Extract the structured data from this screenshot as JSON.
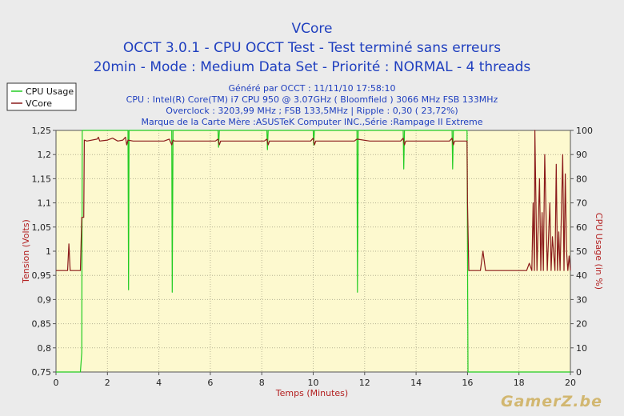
{
  "header": {
    "title": "VCore",
    "line2": "OCCT 3.0.1 - CPU OCCT Test - Test terminé sans erreurs",
    "line3": "20min - Mode : Medium Data Set - Priorité : NORMAL - 4 threads"
  },
  "info": [
    "Généré par OCCT : 11/11/10 17:58:10",
    "CPU : Intel(R) Core(TM) i7 CPU 950 @ 3.07GHz ( Bloomfield ) 3066 MHz FSB 133MHz",
    "Overclock : 3203,99 MHz ; FSB 133,5MHz | Ripple : 0,30 ( 23,72%)",
    "Marque de la Carte Mère :ASUSTeK Computer INC.,Série :Rampage II Extreme"
  ],
  "watermark": "GamerZ.be",
  "colors": {
    "cpu": "#22cc22",
    "vcore": "#8b1a1a",
    "plot_bg": "#fdf9cf",
    "grid": "#b8b394"
  },
  "chart_data": {
    "type": "line",
    "xlabel": "Temps (Minutes)",
    "ylabel": "Tension (Volts)",
    "y2label": "CPU Usage (in %)",
    "xlim": [
      0,
      20
    ],
    "ylim": [
      0.75,
      1.25
    ],
    "y2lim": [
      0,
      100
    ],
    "x_ticks": [
      0,
      2,
      4,
      6,
      8,
      10,
      12,
      14,
      16,
      18,
      20
    ],
    "y_ticks": [
      "0,75",
      "0,8",
      "0,85",
      "0,9",
      "0,95",
      "1",
      "1,05",
      "1,1",
      "1,15",
      "1,2",
      "1,25"
    ],
    "y2_ticks": [
      0,
      10,
      20,
      30,
      40,
      50,
      60,
      70,
      80,
      90,
      100
    ],
    "legend": [
      "CPU Usage",
      "VCore"
    ],
    "series": [
      {
        "name": "CPU Usage",
        "axis": "right",
        "x": [
          0,
          0.95,
          1.0,
          1.02,
          1.05,
          1.1,
          2.8,
          2.82,
          2.84,
          2.9,
          4.5,
          4.52,
          4.55,
          4.6,
          6.3,
          6.32,
          6.35,
          6.4,
          8.2,
          8.22,
          8.25,
          8.3,
          10.0,
          10.02,
          10.05,
          10.1,
          11.7,
          11.72,
          11.75,
          11.8,
          13.5,
          13.52,
          13.55,
          13.6,
          15.4,
          15.42,
          15.45,
          15.5,
          15.98,
          16.02,
          16.05,
          16.1,
          20
        ],
        "y": [
          0,
          0,
          8,
          100,
          100,
          100,
          100,
          34,
          100,
          100,
          100,
          33,
          100,
          100,
          100,
          93,
          100,
          100,
          100,
          92,
          100,
          100,
          100,
          94,
          100,
          100,
          100,
          33,
          100,
          100,
          100,
          84,
          100,
          100,
          100,
          84,
          100,
          100,
          100,
          0,
          0,
          0,
          0
        ]
      },
      {
        "name": "VCore",
        "axis": "left",
        "x": [
          0,
          0.45,
          0.5,
          0.55,
          0.6,
          0.95,
          1.0,
          1.08,
          1.1,
          1.2,
          1.6,
          1.65,
          1.7,
          2.0,
          2.2,
          2.4,
          2.6,
          2.7,
          2.75,
          2.8,
          3.0,
          3.4,
          3.8,
          4.2,
          4.4,
          4.5,
          4.55,
          4.6,
          5.0,
          5.6,
          6.2,
          6.3,
          6.35,
          6.4,
          7.0,
          7.6,
          8.1,
          8.2,
          8.25,
          8.3,
          8.8,
          9.4,
          9.9,
          10.0,
          10.05,
          10.1,
          10.8,
          11.5,
          11.6,
          11.7,
          12.2,
          12.9,
          13.4,
          13.5,
          13.55,
          13.6,
          14.2,
          14.9,
          15.3,
          15.4,
          15.45,
          15.5,
          15.98,
          16.0,
          16.05,
          16.2,
          16.5,
          16.6,
          16.7,
          17.0,
          17.5,
          18.0,
          18.3,
          18.4,
          18.5,
          18.55,
          18.6,
          18.62,
          18.7,
          18.8,
          18.85,
          18.9,
          18.95,
          19.0,
          19.1,
          19.2,
          19.25,
          19.3,
          19.4,
          19.45,
          19.5,
          19.55,
          19.6,
          19.7,
          19.75,
          19.8,
          19.85,
          19.9,
          19.95,
          20
        ],
        "y": [
          0.96,
          0.96,
          1.015,
          0.96,
          0.96,
          0.96,
          1.07,
          1.07,
          1.23,
          1.228,
          1.232,
          1.236,
          1.228,
          1.23,
          1.234,
          1.228,
          1.23,
          1.236,
          1.22,
          1.23,
          1.228,
          1.228,
          1.228,
          1.228,
          1.232,
          1.22,
          1.23,
          1.228,
          1.228,
          1.228,
          1.228,
          1.232,
          1.22,
          1.228,
          1.228,
          1.228,
          1.228,
          1.232,
          1.22,
          1.228,
          1.228,
          1.228,
          1.228,
          1.234,
          1.22,
          1.228,
          1.228,
          1.228,
          1.228,
          1.232,
          1.228,
          1.228,
          1.228,
          1.234,
          1.22,
          1.228,
          1.228,
          1.228,
          1.228,
          1.234,
          1.22,
          1.228,
          1.228,
          1.1,
          0.96,
          0.96,
          0.96,
          1.0,
          0.96,
          0.96,
          0.96,
          0.96,
          0.96,
          0.975,
          0.96,
          1.1,
          0.96,
          1.25,
          0.96,
          1.15,
          0.96,
          1.08,
          0.96,
          1.2,
          0.96,
          1.1,
          0.96,
          1.03,
          0.96,
          1.18,
          0.96,
          1.04,
          0.96,
          1.2,
          0.96,
          1.16,
          1.0,
          0.96,
          0.99,
          0.96
        ]
      }
    ]
  }
}
